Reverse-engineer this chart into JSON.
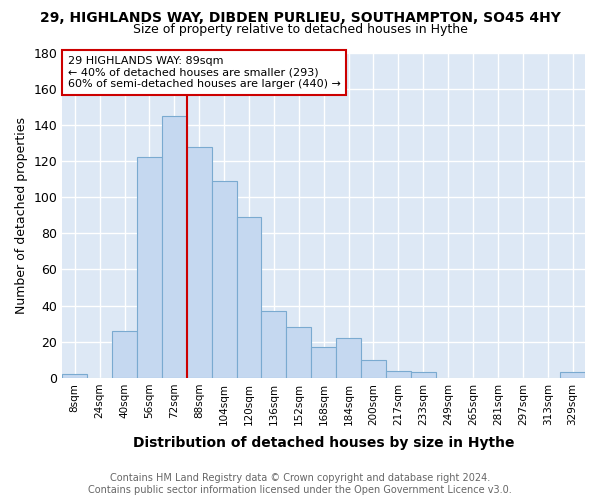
{
  "title": "29, HIGHLANDS WAY, DIBDEN PURLIEU, SOUTHAMPTON, SO45 4HY",
  "subtitle": "Size of property relative to detached houses in Hythe",
  "xlabel": "Distribution of detached houses by size in Hythe",
  "ylabel": "Number of detached properties",
  "bar_labels": [
    "8sqm",
    "24sqm",
    "40sqm",
    "56sqm",
    "72sqm",
    "88sqm",
    "104sqm",
    "120sqm",
    "136sqm",
    "152sqm",
    "168sqm",
    "184sqm",
    "200sqm",
    "217sqm",
    "233sqm",
    "249sqm",
    "265sqm",
    "281sqm",
    "297sqm",
    "313sqm",
    "329sqm"
  ],
  "bar_values": [
    2,
    0,
    26,
    122,
    145,
    128,
    109,
    89,
    37,
    28,
    17,
    22,
    10,
    4,
    3,
    0,
    0,
    0,
    0,
    0,
    3
  ],
  "bar_color": "#c5d8f0",
  "bar_edge_color": "#7aaad0",
  "ylim": [
    0,
    180
  ],
  "yticks": [
    0,
    20,
    40,
    60,
    80,
    100,
    120,
    140,
    160,
    180
  ],
  "property_label": "29 HIGHLANDS WAY: 89sqm",
  "annotation_line1": "← 40% of detached houses are smaller (293)",
  "annotation_line2": "60% of semi-detached houses are larger (440) →",
  "annotation_box_color": "#ffffff",
  "annotation_box_edge_color": "#cc0000",
  "red_line_index": 5,
  "footer_line1": "Contains HM Land Registry data © Crown copyright and database right 2024.",
  "footer_line2": "Contains public sector information licensed under the Open Government Licence v3.0.",
  "background_color": "#ffffff",
  "plot_background_color": "#dde8f5",
  "grid_color": "#ffffff"
}
